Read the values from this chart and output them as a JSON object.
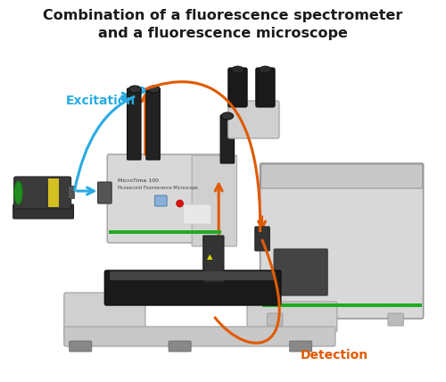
{
  "title_line1": "Combination of a fluorescence spectrometer",
  "title_line2": "and a fluorescence microscope",
  "title_fontsize": 11.5,
  "title_fontweight": "bold",
  "title_color": "#1a1a1a",
  "bg_color": "#ffffff",
  "excitation_label": "Excitation",
  "excitation_color": "#29abe2",
  "excitation_fontsize": 10,
  "detection_label": "Detection",
  "detection_color": "#e05a00",
  "detection_fontsize": 10,
  "figsize": [
    5.0,
    4.28
  ],
  "dpi": 100,
  "micro_body_color": "#d4d4d4",
  "micro_dark_color": "#222222",
  "micro_edge_color": "#aaaaaa",
  "spec_body_color": "#d8d8d8",
  "stage_color": "#555555",
  "base_color": "#cccccc",
  "port_color": "#444444",
  "orange": "#e05a00",
  "blue": "#29abe2"
}
